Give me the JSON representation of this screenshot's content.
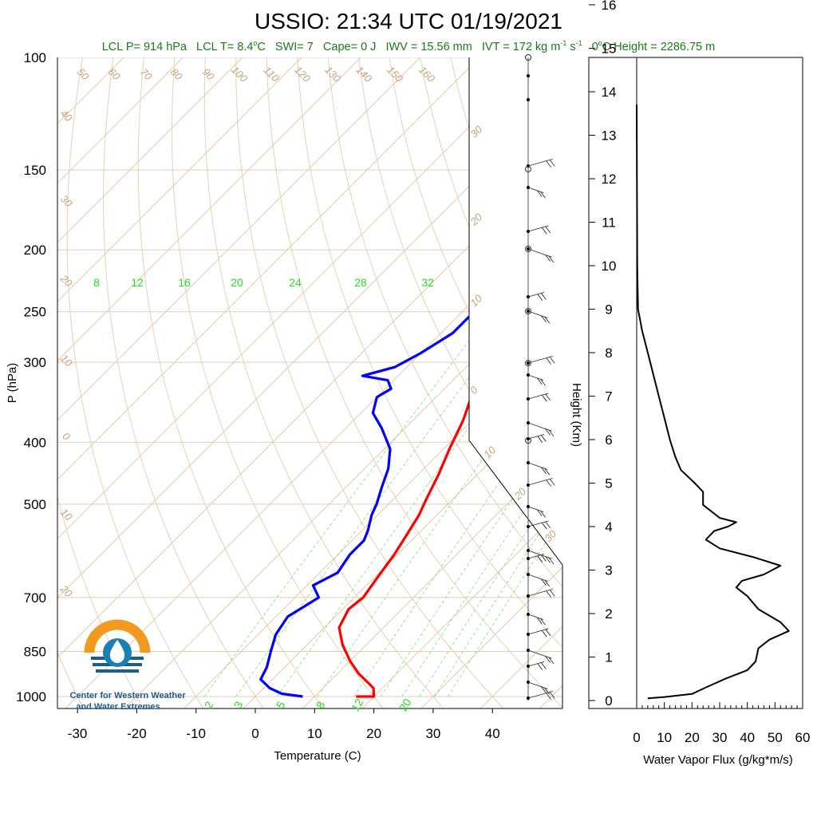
{
  "title": "USSIO: 21:34 UTC 01/19/2021",
  "subtitle": {
    "lcl_p": "LCL P= 914 hPa",
    "lcl_t_pre": "LCL T= 8.4",
    "lcl_t_unit": "C",
    "swi": "SWI= 7",
    "cape": "Cape= 0 J",
    "iwv": "IWV = 15.56 mm",
    "ivt_pre": "IVT = 172 kg m",
    "ivt_mid": " s",
    "exp_neg1": "-1",
    "deg_o": "o",
    "zero_height_pre": "0",
    "zero_height_post": "C Height = 2286.75 m"
  },
  "logo": {
    "line1": "Center for Western Weather",
    "line2": "and Water Extremes"
  },
  "skewt": {
    "ylabel": "P (hPa)",
    "xlabel": "Temperature (C)",
    "pressure_ticks": [
      100,
      150,
      200,
      250,
      300,
      400,
      500,
      700,
      850,
      1000
    ],
    "temp_ticks": [
      -30,
      -20,
      -10,
      0,
      10,
      20,
      30,
      40
    ],
    "mixing_ratio_top_labels": [
      "8",
      "12",
      "16",
      "20",
      "24",
      "28",
      "32"
    ],
    "mixing_ratio_bottom_labels": [
      "2",
      "3",
      "5",
      "8",
      "12",
      "20"
    ],
    "isotherm_labels_top": [
      "50",
      "60",
      "70",
      "80",
      "90",
      "100",
      "110",
      "120",
      "130",
      "140",
      "150",
      "160"
    ],
    "isotherm_labels_left": [
      "40",
      "30",
      "20",
      "10",
      "0",
      "10",
      "20"
    ],
    "adiabat_labels_right": [
      "30",
      "20",
      "10",
      "0",
      "10",
      "20",
      "30"
    ],
    "colors": {
      "temperature": "#ff0000",
      "dewpoint": "#0000ff",
      "dry_adiabat": "#c8a27a",
      "mixing_ratio": "#22dd22"
    }
  },
  "chart_data": [
    {
      "type": "line",
      "title": "USSIO: 21:34 UTC 01/19/2021",
      "xlabel": "Temperature (C)",
      "ylabel": "P (hPa)",
      "xlim": [
        -35,
        50
      ],
      "ylim": [
        1000,
        100
      ],
      "yscale": "log",
      "series": [
        {
          "name": "Temperature",
          "color": "#ff0000",
          "points": [
            [
              17,
              1000
            ],
            [
              20,
              1000
            ],
            [
              18.5,
              970
            ],
            [
              13.5,
              920
            ],
            [
              10,
              880
            ],
            [
              6,
              830
            ],
            [
              2.5,
              780
            ],
            [
              1,
              730
            ],
            [
              1.5,
              700
            ],
            [
              0.5,
              650
            ],
            [
              -0.5,
              600
            ],
            [
              -2,
              550
            ],
            [
              -3,
              520
            ],
            [
              -4.5,
              490
            ],
            [
              -6.5,
              450
            ],
            [
              -9,
              410
            ],
            [
              -11.5,
              370
            ],
            [
              -15,
              330
            ],
            [
              -17.5,
              315
            ],
            [
              -17.5,
              310
            ],
            [
              -14,
              300
            ],
            [
              -11,
              285
            ],
            [
              -9,
              270
            ],
            [
              -6,
              255
            ],
            [
              -4,
              245
            ],
            [
              -3,
              235
            ],
            [
              -2,
              225
            ],
            [
              -0.5,
              215
            ],
            [
              -0.5,
              205
            ],
            [
              -0.5,
              195
            ],
            [
              -2,
              180
            ],
            [
              -3,
              170
            ],
            [
              -4,
              160
            ],
            [
              -4.5,
              150
            ]
          ]
        },
        {
          "name": "Dewpoint",
          "color": "#0000ff",
          "points": [
            [
              8,
              1000
            ],
            [
              4,
              990
            ],
            [
              1,
              970
            ],
            [
              -2,
              940
            ],
            [
              -3,
              900
            ],
            [
              -5,
              850
            ],
            [
              -7,
              800
            ],
            [
              -8,
              750
            ],
            [
              -6,
              700
            ],
            [
              -9,
              670
            ],
            [
              -7,
              640
            ],
            [
              -8,
              600
            ],
            [
              -8,
              570
            ],
            [
              -9,
              550
            ],
            [
              -11,
              520
            ],
            [
              -12,
              500
            ],
            [
              -14,
              470
            ],
            [
              -16,
              440
            ],
            [
              -19,
              410
            ],
            [
              -24,
              380
            ],
            [
              -28,
              360
            ],
            [
              -30,
              340
            ],
            [
              -29,
              330
            ],
            [
              -31,
              320
            ],
            [
              -36,
              315
            ],
            [
              -32,
              305
            ],
            [
              -30,
              290
            ],
            [
              -28,
              270
            ],
            [
              -28,
              255
            ],
            [
              -26,
              240
            ],
            [
              -25,
              225
            ],
            [
              -24,
              210
            ],
            [
              -23,
              195
            ],
            [
              -22,
              180
            ],
            [
              -22,
              170
            ],
            [
              -23,
              160
            ],
            [
              -22,
              150
            ]
          ]
        }
      ]
    },
    {
      "type": "line",
      "xlabel": "Water Vapor Flux (g/kg*m/s)",
      "ylabel": "Height (Km)",
      "xlim": [
        0,
        60
      ],
      "ylim": [
        0,
        16.5
      ],
      "x_ticks": [
        0,
        10,
        20,
        30,
        40,
        50,
        60
      ],
      "y_ticks": [
        0,
        1,
        2,
        3,
        4,
        5,
        6,
        7,
        8,
        9,
        10,
        11,
        12,
        13,
        14,
        15,
        16
      ],
      "series": [
        {
          "color": "#000000",
          "points": [
            [
              4,
              0.05
            ],
            [
              10,
              0.08
            ],
            [
              20,
              0.15
            ],
            [
              25,
              0.3
            ],
            [
              32,
              0.5
            ],
            [
              40,
              0.7
            ],
            [
              43,
              0.9
            ],
            [
              44,
              1.2
            ],
            [
              48,
              1.4
            ],
            [
              55,
              1.6
            ],
            [
              52,
              1.8
            ],
            [
              44,
              2.1
            ],
            [
              40,
              2.4
            ],
            [
              36,
              2.6
            ],
            [
              38,
              2.75
            ],
            [
              46,
              2.9
            ],
            [
              52,
              3.1
            ],
            [
              42,
              3.3
            ],
            [
              30,
              3.5
            ],
            [
              25,
              3.7
            ],
            [
              28,
              3.9
            ],
            [
              33,
              4.0
            ],
            [
              36,
              4.1
            ],
            [
              30,
              4.2
            ],
            [
              24,
              4.5
            ],
            [
              24,
              4.8
            ],
            [
              21,
              5.0
            ],
            [
              16,
              5.3
            ],
            [
              14,
              5.6
            ],
            [
              12,
              6.0
            ],
            [
              10,
              6.5
            ],
            [
              8,
              7.0
            ],
            [
              6,
              7.5
            ],
            [
              4,
              8.0
            ],
            [
              2,
              8.5
            ],
            [
              0.5,
              9.0
            ],
            [
              0.2,
              10.0
            ],
            [
              0.1,
              12.0
            ],
            [
              0,
              13.7
            ]
          ]
        }
      ]
    }
  ]
}
